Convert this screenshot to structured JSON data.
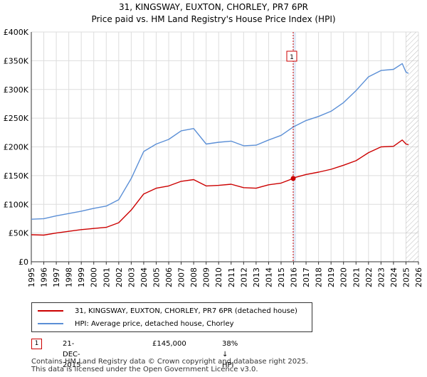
{
  "title_line1": "31, KINGSWAY, EUXTON, CHORLEY, PR7 6PR",
  "title_line2": "Price paid vs. HM Land Registry's House Price Index (HPI)",
  "legend": {
    "series1": "31, KINGSWAY, EUXTON, CHORLEY, PR7 6PR (detached house)",
    "series2": "HPI: Average price, detached house, Chorley"
  },
  "annotation": {
    "num": "1",
    "date": "21-DEC-2015",
    "price": "£145,000",
    "hpi": "38% ↓ HPI"
  },
  "footer_line1": "Contains HM Land Registry data © Crown copyright and database right 2025.",
  "footer_line2": "This data is licensed under the Open Government Licence v3.0.",
  "colors": {
    "property": "#cc0000",
    "hpi": "#5b8fd6",
    "grid": "#dddddd",
    "highlight": "#dce6f5",
    "axis": "#333333"
  },
  "chart_data": {
    "type": "line",
    "title": "31, KINGSWAY, EUXTON, CHORLEY, PR7 6PR",
    "subtitle": "Price paid vs. HM Land Registry's House Price Index (HPI)",
    "xlabel": "",
    "ylabel": "",
    "xlim": [
      1995,
      2026
    ],
    "ylim": [
      0,
      400000
    ],
    "grid": true,
    "legend_position": "bottom",
    "y_ticks": [
      0,
      50000,
      100000,
      150000,
      200000,
      250000,
      300000,
      350000,
      400000
    ],
    "y_tick_labels": [
      "£0",
      "£50K",
      "£100K",
      "£150K",
      "£200K",
      "£250K",
      "£300K",
      "£350K",
      "£400K"
    ],
    "x_ticks": [
      1995,
      1996,
      1997,
      1998,
      1999,
      2000,
      2001,
      2002,
      2003,
      2004,
      2005,
      2006,
      2007,
      2008,
      2009,
      2010,
      2011,
      2012,
      2013,
      2014,
      2015,
      2016,
      2017,
      2018,
      2019,
      2020,
      2021,
      2022,
      2023,
      2024,
      2025,
      2026
    ],
    "x_tick_labels": [
      "1995",
      "1996",
      "1997",
      "1998",
      "1999",
      "2000",
      "2001",
      "2002",
      "2003",
      "2004",
      "2005",
      "2006",
      "2007",
      "2008",
      "2009",
      "2010",
      "2011",
      "2012",
      "2013",
      "2014",
      "2015",
      "2016",
      "2017",
      "2018",
      "2019",
      "2020",
      "2021",
      "2022",
      "2023",
      "2024",
      "2025",
      "2026"
    ],
    "series": [
      {
        "name": "31, KINGSWAY, EUXTON, CHORLEY, PR7 6PR (detached house)",
        "color": "#cc0000",
        "x": [
          1995,
          1996,
          1997,
          1998,
          1999,
          2000,
          2001,
          2002,
          2003,
          2004,
          2005,
          2006,
          2007,
          2008,
          2009,
          2010,
          2011,
          2012,
          2013,
          2014,
          2015,
          2015.97,
          2016,
          2017,
          2018,
          2019,
          2020,
          2021,
          2022,
          2023,
          2024,
          2024.7,
          2025,
          2025.2
        ],
        "y": [
          47000,
          46500,
          50000,
          53000,
          56000,
          58000,
          60000,
          68000,
          90000,
          118000,
          128000,
          132000,
          140000,
          143000,
          132000,
          133000,
          135000,
          129000,
          128000,
          134000,
          137000,
          145000,
          146000,
          152000,
          156000,
          161000,
          168000,
          176000,
          190000,
          200000,
          201000,
          212000,
          205000,
          204000
        ]
      },
      {
        "name": "HPI: Average price, detached house, Chorley",
        "color": "#5b8fd6",
        "x": [
          1995,
          1996,
          1997,
          1998,
          1999,
          2000,
          2001,
          2002,
          2003,
          2004,
          2005,
          2006,
          2007,
          2008,
          2009,
          2010,
          2011,
          2012,
          2013,
          2014,
          2015,
          2016,
          2017,
          2018,
          2019,
          2020,
          2021,
          2022,
          2023,
          2024,
          2024.7,
          2025,
          2025.2
        ],
        "y": [
          74000,
          75000,
          80000,
          84000,
          88000,
          93000,
          97000,
          108000,
          145000,
          192000,
          205000,
          213000,
          228000,
          232000,
          205000,
          208000,
          210000,
          202000,
          203000,
          212000,
          220000,
          235000,
          246000,
          253000,
          262000,
          277000,
          298000,
          322000,
          333000,
          335000,
          345000,
          330000,
          328000
        ]
      }
    ],
    "annotations": [
      {
        "label": "1",
        "x": 2015.97,
        "y": 145000,
        "date": "21-DEC-2015",
        "price": "£145,000",
        "note": "38% ↓ HPI"
      }
    ],
    "shaded_regions": [
      {
        "from": 2015.97,
        "to": 2016.2,
        "kind": "sale-highlight"
      },
      {
        "from": 2025.0,
        "to": 2026,
        "kind": "future-hatch"
      }
    ]
  }
}
